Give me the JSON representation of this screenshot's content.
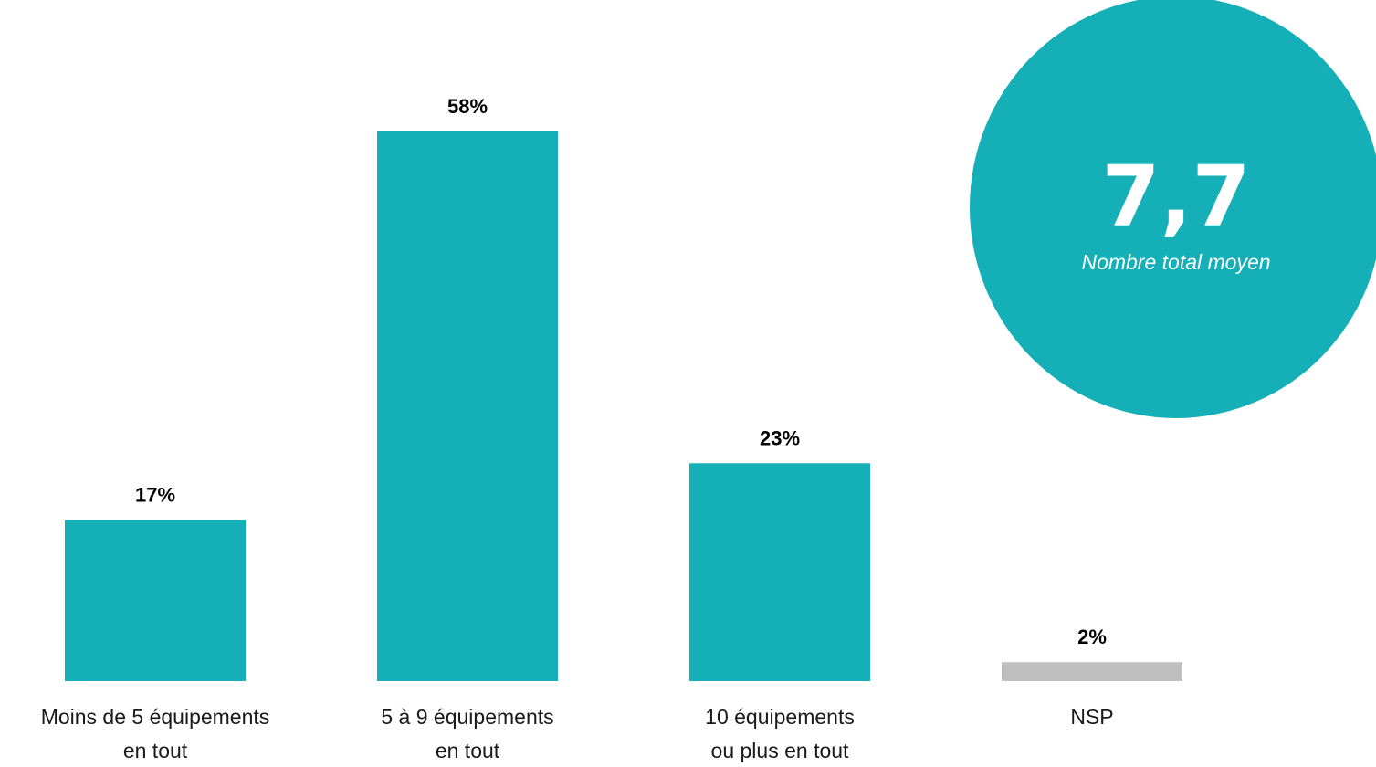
{
  "chart_data": {
    "type": "bar",
    "categories": [
      [
        "Moins de 5 équipements",
        "en tout"
      ],
      [
        "5 à 9 équipements",
        "en tout"
      ],
      [
        "10 équipements",
        "ou plus en tout"
      ],
      [
        "NSP"
      ]
    ],
    "values": [
      17,
      58,
      23,
      2
    ],
    "value_labels": [
      "17%",
      "58%",
      "23%",
      "2%"
    ],
    "unit": "%",
    "ylim": [
      0,
      58
    ],
    "grid": false,
    "bar_colors": [
      "#14afb7",
      "#14afb7",
      "#14afb7",
      "#bfbfbf"
    ]
  },
  "kpi": {
    "value": "7,7",
    "caption": "Nombre total moyen",
    "color": "#14afb7"
  }
}
